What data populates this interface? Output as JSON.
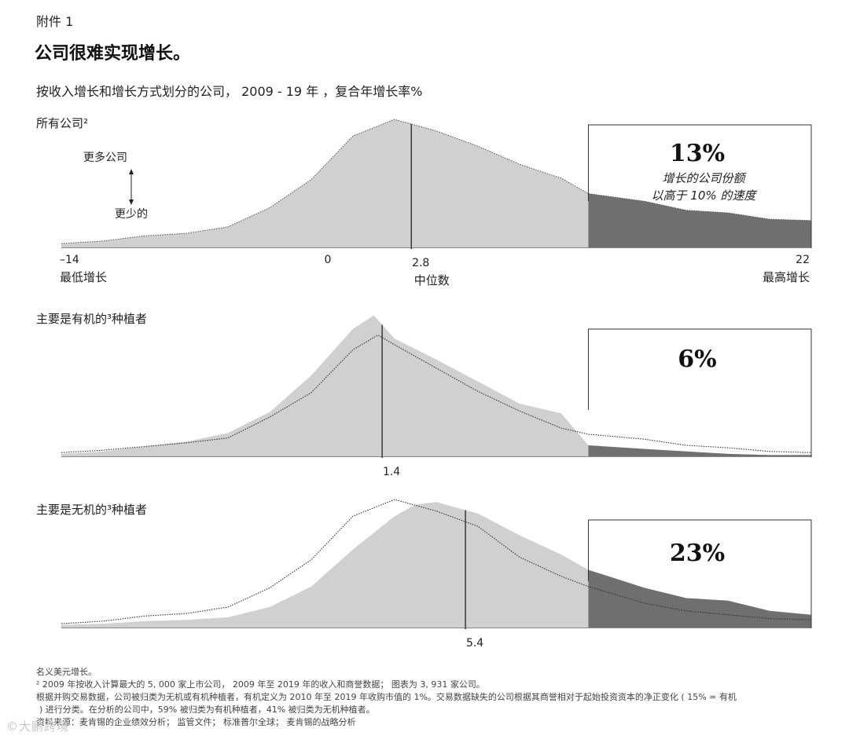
{
  "header": {
    "exhibit": "附件 1",
    "title": "公司很难实现增长。",
    "subtitle": "按收入增长和增长方式划分的公司， 2009 - 19 年 ，复合年增长率%"
  },
  "colors": {
    "area_fill": "#d0d0d0",
    "tail_fill": "#6f6f6f",
    "line": "#222222",
    "dotted_line": "#333333"
  },
  "chart_data": [
    {
      "type": "area",
      "panel_label": "所有公司²",
      "xlim": [
        -14,
        22
      ],
      "x_tick_labels": [
        {
          "x": -14,
          "label": "–14",
          "sublabel": "最低增长"
        },
        {
          "x": 0,
          "label": "0",
          "sublabel": ""
        },
        {
          "x": 22,
          "label": "22",
          "sublabel": "最高增长"
        }
      ],
      "median": {
        "x": 2.8,
        "label": "2.8",
        "sublabel": "中位数"
      },
      "y_axis_arrow": {
        "up_label": "更多公司",
        "down_label": "更少的"
      },
      "highlight_threshold": 10,
      "highlight_value": "13%",
      "highlight_caption": [
        "增长的公司份额",
        "以高于 10% 的速度"
      ],
      "series": [
        {
          "name": "所有公司",
          "style": "filled",
          "x": [
            -14,
            -12,
            -10,
            -8,
            -6,
            -4,
            -2,
            0,
            2,
            4,
            6,
            8,
            10,
            11.3,
            14,
            16,
            18,
            20,
            22
          ],
          "y": [
            0.03,
            0.05,
            0.09,
            0.11,
            0.16,
            0.31,
            0.53,
            0.87,
            1.0,
            0.91,
            0.79,
            0.65,
            0.54,
            0.42,
            0.36,
            0.29,
            0.27,
            0.22,
            0.21
          ]
        }
      ]
    },
    {
      "type": "area",
      "panel_label": "主要是有机的³种植者",
      "xlim": [
        -14,
        22
      ],
      "median": {
        "x": 1.4,
        "label": "1.4"
      },
      "highlight_threshold": 10,
      "highlight_value": "6%",
      "series": [
        {
          "name": "主要是有机的种植者",
          "style": "filled",
          "x": [
            -14,
            -12,
            -10,
            -8,
            -6,
            -4,
            -2,
            0,
            1,
            2,
            4,
            6,
            8,
            10,
            11.3,
            14,
            16,
            18,
            20,
            22
          ],
          "y": [
            0.02,
            0.04,
            0.08,
            0.12,
            0.19,
            0.36,
            0.66,
            1.04,
            1.15,
            0.96,
            0.79,
            0.61,
            0.43,
            0.35,
            0.09,
            0.06,
            0.04,
            0.02,
            0.01,
            0.01
          ]
        },
        {
          "name": "所有公司",
          "style": "dotted",
          "x": [
            -14,
            -12,
            -10,
            -8,
            -6,
            -4,
            -2,
            0,
            1.2,
            2,
            4,
            6,
            8,
            10,
            11.3,
            14,
            16,
            18,
            20,
            22
          ],
          "y": [
            0.03,
            0.05,
            0.08,
            0.11,
            0.15,
            0.32,
            0.52,
            0.87,
            0.99,
            0.91,
            0.72,
            0.53,
            0.37,
            0.23,
            0.18,
            0.14,
            0.09,
            0.07,
            0.04,
            0.03
          ]
        }
      ]
    },
    {
      "type": "area",
      "panel_label": "主要是无机的³种植者",
      "xlim": [
        -14,
        22
      ],
      "median": {
        "x": 5.4,
        "label": "5.4"
      },
      "highlight_threshold": 10,
      "highlight_value": "23%",
      "series": [
        {
          "name": "主要是无机的种植者",
          "style": "filled",
          "x": [
            -14,
            -12,
            -10,
            -8,
            -6,
            -4,
            -2,
            0,
            2,
            3,
            4,
            6,
            8,
            10,
            11.3,
            14,
            16,
            18,
            20,
            22
          ],
          "y": [
            0.02,
            0.03,
            0.05,
            0.06,
            0.08,
            0.16,
            0.32,
            0.61,
            0.87,
            0.96,
            0.98,
            0.89,
            0.72,
            0.57,
            0.45,
            0.31,
            0.23,
            0.21,
            0.13,
            0.1
          ]
        },
        {
          "name": "所有公司",
          "style": "dotted",
          "x": [
            -14,
            -12,
            -10,
            -8,
            -6,
            -4,
            -2,
            0,
            2,
            4,
            6,
            8,
            10,
            11.3,
            14,
            16,
            18,
            20,
            22
          ],
          "y": [
            0.03,
            0.05,
            0.09,
            0.11,
            0.16,
            0.31,
            0.53,
            0.87,
            1.0,
            0.91,
            0.79,
            0.55,
            0.4,
            0.32,
            0.19,
            0.13,
            0.1,
            0.07,
            0.06
          ]
        }
      ]
    }
  ],
  "footnotes": [
    "名义美元增长。",
    "² 2009 年按收入计算最大的 5, 000 家上市公司， 2009 年至 2019 年的收入和商誉数据； 图表为 3, 931 家公司。",
    "根据并购交易数据，公司被归类为无机或有机种植者，有机定义为 2010 年至 2019 年收购市值的 1%。交易数据缺失的公司根据其商誉相对于起始投资资本的净正变化 ( 15% = 有机",
    " ) 进行分类。在分析的公司中，59% 被归类为有机种植者，41% 被归类为无机种植者。",
    "资料来源：麦肯锡的企业绩效分析； 监管文件； 标准普尔全球； 麦肯锡的战略分析"
  ],
  "watermark": "©大鹏跨境"
}
